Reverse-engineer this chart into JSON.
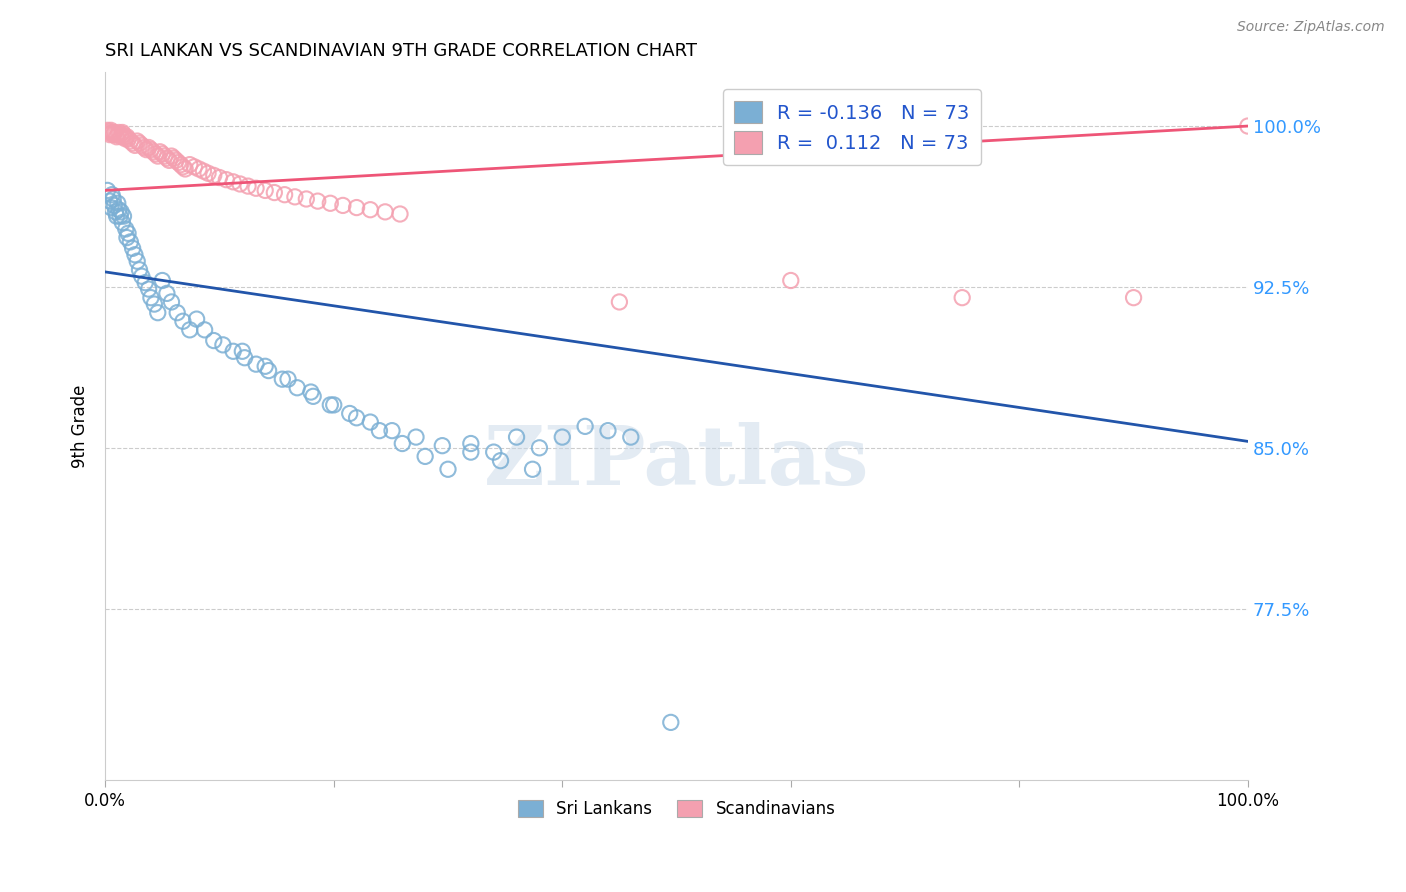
{
  "title": "SRI LANKAN VS SCANDINAVIAN 9TH GRADE CORRELATION CHART",
  "source": "Source: ZipAtlas.com",
  "ylabel": "9th Grade",
  "xlim": [
    0.0,
    1.0
  ],
  "ylim": [
    0.695,
    1.025
  ],
  "yticks": [
    0.775,
    0.85,
    0.925,
    1.0
  ],
  "ytick_labels": [
    "77.5%",
    "85.0%",
    "92.5%",
    "100.0%"
  ],
  "sri_lankan_color": "#7BAFD4",
  "scandinavian_color": "#F4A0B0",
  "trend_sri_lankan_color": "#2255AA",
  "trend_scandinavian_color": "#EE5577",
  "watermark_color": "#C8D8E8",
  "sri_x": [
    0.002,
    0.004,
    0.005,
    0.006,
    0.007,
    0.008,
    0.009,
    0.01,
    0.011,
    0.012,
    0.013,
    0.014,
    0.015,
    0.016,
    0.018,
    0.019,
    0.02,
    0.022,
    0.024,
    0.026,
    0.028,
    0.03,
    0.032,
    0.035,
    0.038,
    0.04,
    0.043,
    0.046,
    0.05,
    0.054,
    0.058,
    0.063,
    0.068,
    0.074,
    0.08,
    0.087,
    0.095,
    0.103,
    0.112,
    0.122,
    0.132,
    0.143,
    0.155,
    0.168,
    0.182,
    0.197,
    0.214,
    0.232,
    0.251,
    0.272,
    0.295,
    0.32,
    0.346,
    0.374,
    0.12,
    0.14,
    0.16,
    0.18,
    0.2,
    0.22,
    0.24,
    0.26,
    0.28,
    0.3,
    0.32,
    0.34,
    0.36,
    0.38,
    0.4,
    0.42,
    0.44,
    0.46,
    0.495
  ],
  "sri_y": [
    0.97,
    0.965,
    0.962,
    0.968,
    0.966,
    0.963,
    0.96,
    0.958,
    0.964,
    0.961,
    0.958,
    0.96,
    0.955,
    0.958,
    0.952,
    0.948,
    0.95,
    0.946,
    0.943,
    0.94,
    0.937,
    0.933,
    0.93,
    0.927,
    0.924,
    0.92,
    0.917,
    0.913,
    0.928,
    0.922,
    0.918,
    0.913,
    0.909,
    0.905,
    0.91,
    0.905,
    0.9,
    0.898,
    0.895,
    0.892,
    0.889,
    0.886,
    0.882,
    0.878,
    0.874,
    0.87,
    0.866,
    0.862,
    0.858,
    0.855,
    0.851,
    0.848,
    0.844,
    0.84,
    0.895,
    0.888,
    0.882,
    0.876,
    0.87,
    0.864,
    0.858,
    0.852,
    0.846,
    0.84,
    0.852,
    0.848,
    0.855,
    0.85,
    0.855,
    0.86,
    0.858,
    0.855,
    0.722
  ],
  "scan_x": [
    0.002,
    0.003,
    0.004,
    0.005,
    0.006,
    0.007,
    0.008,
    0.009,
    0.01,
    0.011,
    0.012,
    0.013,
    0.014,
    0.015,
    0.016,
    0.017,
    0.018,
    0.019,
    0.02,
    0.022,
    0.024,
    0.026,
    0.028,
    0.03,
    0.032,
    0.034,
    0.036,
    0.038,
    0.04,
    0.042,
    0.044,
    0.046,
    0.048,
    0.05,
    0.052,
    0.054,
    0.056,
    0.058,
    0.06,
    0.062,
    0.064,
    0.066,
    0.068,
    0.07,
    0.074,
    0.078,
    0.082,
    0.086,
    0.09,
    0.095,
    0.1,
    0.106,
    0.112,
    0.118,
    0.125,
    0.132,
    0.14,
    0.148,
    0.157,
    0.166,
    0.176,
    0.186,
    0.197,
    0.208,
    0.22,
    0.232,
    0.245,
    0.258,
    0.45,
    0.6,
    0.75,
    0.9,
    1.0
  ],
  "scan_y": [
    0.998,
    0.997,
    0.996,
    0.998,
    0.997,
    0.996,
    0.997,
    0.996,
    0.995,
    0.996,
    0.997,
    0.996,
    0.995,
    0.997,
    0.996,
    0.995,
    0.994,
    0.995,
    0.994,
    0.993,
    0.992,
    0.991,
    0.993,
    0.992,
    0.991,
    0.99,
    0.989,
    0.99,
    0.989,
    0.988,
    0.987,
    0.986,
    0.988,
    0.987,
    0.986,
    0.985,
    0.984,
    0.986,
    0.985,
    0.984,
    0.983,
    0.982,
    0.981,
    0.98,
    0.982,
    0.981,
    0.98,
    0.979,
    0.978,
    0.977,
    0.976,
    0.975,
    0.974,
    0.973,
    0.972,
    0.971,
    0.97,
    0.969,
    0.968,
    0.967,
    0.966,
    0.965,
    0.964,
    0.963,
    0.962,
    0.961,
    0.96,
    0.959,
    0.918,
    0.928,
    0.92,
    0.92,
    1.0
  ],
  "trend_sri_start_y": 0.932,
  "trend_sri_end_y": 0.853,
  "trend_scan_start_y": 0.97,
  "trend_scan_end_y": 1.0
}
